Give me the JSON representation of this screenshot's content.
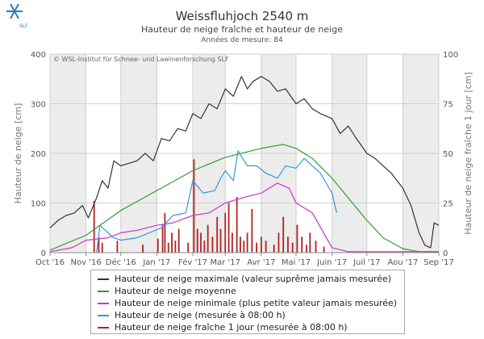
{
  "header": {
    "title": "Weissfluhjoch 2540 m",
    "subtitle": "Hauteur de neige fraîche et hauteur de neige",
    "years": "Années de mesure: 84",
    "credit": "© WSL-Institut für Schnee- und Lawinenforschung SLF",
    "logo_text": "SLF"
  },
  "chart_data": {
    "type": "line",
    "x_axis": {
      "type": "date",
      "range": [
        "2016-10-01",
        "2017-09-01"
      ],
      "tick_labels": [
        "Oct '16",
        "Nov '16",
        "Déc '16",
        "Jan '17",
        "Fév '17",
        "Mar '17",
        "Avr '17",
        "Mai '17",
        "Juin '17",
        "Juil '17",
        "Aou '17",
        "Sep '17"
      ]
    },
    "y_left": {
      "label": "Hauteur de neige [cm]",
      "range": [
        0,
        400
      ],
      "ticks": [
        0,
        100,
        200,
        300,
        400
      ]
    },
    "y_right": {
      "label": "Hauteur de neige fraîche 1 jour [cm]",
      "range": [
        0,
        100
      ],
      "ticks": [
        0,
        25,
        50,
        75,
        100
      ]
    },
    "grid": true,
    "legend_position": "bottom",
    "series": [
      {
        "name": "Hauteur de neige maximale (valeur suprême jamais mesurée)",
        "color": "#333333",
        "axis": "left",
        "points": [
          [
            "2016-10-01",
            50
          ],
          [
            "2016-10-08",
            65
          ],
          [
            "2016-10-15",
            75
          ],
          [
            "2016-10-22",
            80
          ],
          [
            "2016-10-29",
            95
          ],
          [
            "2016-11-03",
            70
          ],
          [
            "2016-11-10",
            110
          ],
          [
            "2016-11-15",
            145
          ],
          [
            "2016-11-20",
            130
          ],
          [
            "2016-11-25",
            185
          ],
          [
            "2016-12-01",
            175
          ],
          [
            "2016-12-08",
            180
          ],
          [
            "2016-12-15",
            185
          ],
          [
            "2016-12-22",
            200
          ],
          [
            "2016-12-29",
            185
          ],
          [
            "2017-01-05",
            230
          ],
          [
            "2017-01-12",
            225
          ],
          [
            "2017-01-19",
            250
          ],
          [
            "2017-01-26",
            245
          ],
          [
            "2017-02-01",
            280
          ],
          [
            "2017-02-08",
            270
          ],
          [
            "2017-02-15",
            300
          ],
          [
            "2017-02-22",
            290
          ],
          [
            "2017-03-01",
            330
          ],
          [
            "2017-03-08",
            315
          ],
          [
            "2017-03-15",
            355
          ],
          [
            "2017-03-20",
            330
          ],
          [
            "2017-03-25",
            345
          ],
          [
            "2017-04-01",
            355
          ],
          [
            "2017-04-08",
            345
          ],
          [
            "2017-04-15",
            325
          ],
          [
            "2017-04-22",
            330
          ],
          [
            "2017-05-01",
            300
          ],
          [
            "2017-05-08",
            310
          ],
          [
            "2017-05-15",
            290
          ],
          [
            "2017-05-22",
            280
          ],
          [
            "2017-06-01",
            270
          ],
          [
            "2017-06-08",
            240
          ],
          [
            "2017-06-15",
            255
          ],
          [
            "2017-06-22",
            230
          ],
          [
            "2017-07-01",
            200
          ],
          [
            "2017-07-08",
            190
          ],
          [
            "2017-07-15",
            175
          ],
          [
            "2017-07-22",
            160
          ],
          [
            "2017-08-01",
            130
          ],
          [
            "2017-08-08",
            95
          ],
          [
            "2017-08-15",
            40
          ],
          [
            "2017-08-20",
            15
          ],
          [
            "2017-08-25",
            10
          ],
          [
            "2017-08-28",
            60
          ],
          [
            "2017-09-01",
            55
          ]
        ]
      },
      {
        "name": "Hauteur de neige moyenne",
        "color": "#2ca02c",
        "axis": "left",
        "points": [
          [
            "2016-10-01",
            5
          ],
          [
            "2016-11-01",
            35
          ],
          [
            "2016-12-01",
            85
          ],
          [
            "2017-01-01",
            125
          ],
          [
            "2017-02-01",
            165
          ],
          [
            "2017-03-01",
            192
          ],
          [
            "2017-04-01",
            210
          ],
          [
            "2017-04-20",
            218
          ],
          [
            "2017-05-01",
            210
          ],
          [
            "2017-05-15",
            190
          ],
          [
            "2017-06-01",
            150
          ],
          [
            "2017-06-15",
            110
          ],
          [
            "2017-07-01",
            65
          ],
          [
            "2017-07-15",
            30
          ],
          [
            "2017-08-01",
            8
          ],
          [
            "2017-08-15",
            2
          ],
          [
            "2017-09-01",
            2
          ]
        ]
      },
      {
        "name": "Hauteur de neige minimale (plus petite valeur jamais mesurée)",
        "color": "#cc33cc",
        "axis": "left",
        "points": [
          [
            "2016-10-01",
            2
          ],
          [
            "2016-10-20",
            10
          ],
          [
            "2016-11-01",
            25
          ],
          [
            "2016-11-20",
            30
          ],
          [
            "2016-12-01",
            40
          ],
          [
            "2016-12-15",
            45
          ],
          [
            "2017-01-01",
            55
          ],
          [
            "2017-01-15",
            60
          ],
          [
            "2017-02-01",
            75
          ],
          [
            "2017-02-15",
            80
          ],
          [
            "2017-03-01",
            100
          ],
          [
            "2017-03-15",
            110
          ],
          [
            "2017-04-01",
            120
          ],
          [
            "2017-04-15",
            140
          ],
          [
            "2017-04-25",
            130
          ],
          [
            "2017-05-01",
            100
          ],
          [
            "2017-05-15",
            80
          ],
          [
            "2017-06-01",
            10
          ],
          [
            "2017-06-15",
            2
          ],
          [
            "2017-09-01",
            2
          ]
        ]
      },
      {
        "name": "Hauteur de neige (mesurée à 08:00 h)",
        "color": "#3399dd",
        "axis": "left",
        "points": [
          [
            "2016-11-10",
            0
          ],
          [
            "2016-11-13",
            55
          ],
          [
            "2016-11-20",
            40
          ],
          [
            "2016-11-25",
            30
          ],
          [
            "2016-12-01",
            25
          ],
          [
            "2016-12-15",
            30
          ],
          [
            "2017-01-05",
            50
          ],
          [
            "2017-01-15",
            75
          ],
          [
            "2017-01-26",
            80
          ],
          [
            "2017-02-01",
            145
          ],
          [
            "2017-02-10",
            120
          ],
          [
            "2017-02-20",
            125
          ],
          [
            "2017-02-25",
            150
          ],
          [
            "2017-03-01",
            165
          ],
          [
            "2017-03-08",
            145
          ],
          [
            "2017-03-12",
            205
          ],
          [
            "2017-03-20",
            175
          ],
          [
            "2017-03-28",
            175
          ],
          [
            "2017-04-05",
            160
          ],
          [
            "2017-04-15",
            150
          ],
          [
            "2017-04-22",
            175
          ],
          [
            "2017-05-01",
            170
          ],
          [
            "2017-05-08",
            190
          ],
          [
            "2017-05-15",
            175
          ],
          [
            "2017-05-22",
            160
          ],
          [
            "2017-06-01",
            120
          ],
          [
            "2017-06-05",
            80
          ]
        ]
      },
      {
        "name": "Hauteur de neige fraîche 1 jour (mesurée à 08:00 h)",
        "color": "#b22222",
        "axis": "right",
        "bars": [
          [
            "2016-11-08",
            26
          ],
          [
            "2016-11-12",
            8
          ],
          [
            "2016-11-15",
            5
          ],
          [
            "2016-11-28",
            6
          ],
          [
            "2016-12-20",
            4
          ],
          [
            "2017-01-02",
            7
          ],
          [
            "2017-01-06",
            14
          ],
          [
            "2017-01-08",
            20
          ],
          [
            "2017-01-11",
            5
          ],
          [
            "2017-01-14",
            10
          ],
          [
            "2017-01-17",
            6
          ],
          [
            "2017-01-20",
            12
          ],
          [
            "2017-01-28",
            5
          ],
          [
            "2017-02-02",
            47
          ],
          [
            "2017-02-05",
            12
          ],
          [
            "2017-02-08",
            10
          ],
          [
            "2017-02-11",
            6
          ],
          [
            "2017-02-14",
            14
          ],
          [
            "2017-02-18",
            8
          ],
          [
            "2017-02-22",
            18
          ],
          [
            "2017-02-25",
            12
          ],
          [
            "2017-03-01",
            20
          ],
          [
            "2017-03-04",
            25
          ],
          [
            "2017-03-07",
            10
          ],
          [
            "2017-03-11",
            28
          ],
          [
            "2017-03-14",
            8
          ],
          [
            "2017-03-17",
            6
          ],
          [
            "2017-03-20",
            10
          ],
          [
            "2017-03-24",
            22
          ],
          [
            "2017-03-28",
            5
          ],
          [
            "2017-04-01",
            8
          ],
          [
            "2017-04-05",
            6
          ],
          [
            "2017-04-12",
            4
          ],
          [
            "2017-04-16",
            10
          ],
          [
            "2017-04-20",
            18
          ],
          [
            "2017-04-24",
            8
          ],
          [
            "2017-04-28",
            5
          ],
          [
            "2017-05-02",
            14
          ],
          [
            "2017-05-06",
            8
          ],
          [
            "2017-05-10",
            4
          ],
          [
            "2017-05-13",
            10
          ],
          [
            "2017-05-18",
            6
          ],
          [
            "2017-05-25",
            3
          ]
        ]
      }
    ]
  }
}
